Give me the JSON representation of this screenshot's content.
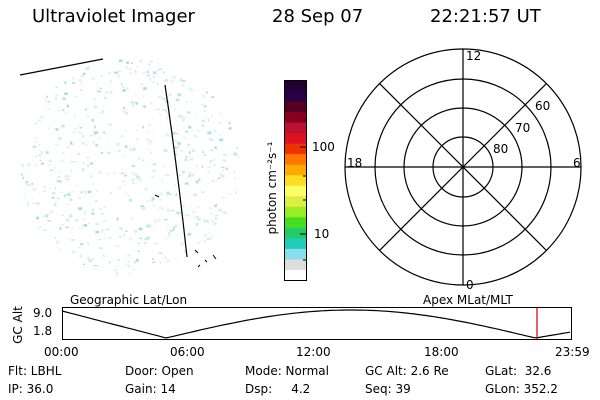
{
  "header": {
    "title": "Ultraviolet Imager",
    "date": "28 Sep 07",
    "time": "22:21:57 UT"
  },
  "colorbar": {
    "label": "photon cm⁻²s⁻¹",
    "tick_100": "100",
    "tick_10": "10",
    "colors": [
      "#220033",
      "#2a0045",
      "#550022",
      "#880022",
      "#bb1133",
      "#dd1122",
      "#ee3300",
      "#ff7700",
      "#ffaa00",
      "#ffdd22",
      "#ffff66",
      "#ddee44",
      "#99ee22",
      "#44dd22",
      "#22cc66",
      "#22ccbb",
      "#88ddee",
      "#dddddd",
      "#ffffff"
    ]
  },
  "polar": {
    "label_top": "12",
    "label_bottom": "0",
    "label_left": "18",
    "label_right": "6",
    "ring_60": "60",
    "ring_70": "70",
    "ring_80": "80"
  },
  "coords": {
    "left": "Geographic Lat/Lon",
    "right": "Apex MLat/MLT"
  },
  "altitude_plot": {
    "ylabel": "GC Alt",
    "ytick_top": "9.0",
    "ytick_bottom": "1.8",
    "xticks": [
      "00:00",
      "06:00",
      "12:00",
      "18:00",
      "23:59"
    ],
    "marker_color": "#cc0000"
  },
  "info": {
    "row1": {
      "flt": "Flt: LBHL",
      "door": "Door: Open",
      "mode": "Mode: Normal",
      "gcalt": "GC Alt: 2.6 Re",
      "glat": "GLat:  32.6"
    },
    "row2": {
      "ip": "IP: 36.0",
      "gain": "Gain: 14",
      "dsp": "Dsp:     4.2",
      "seq": "Seq: 39",
      "glon": "GLon: 352.2"
    }
  }
}
